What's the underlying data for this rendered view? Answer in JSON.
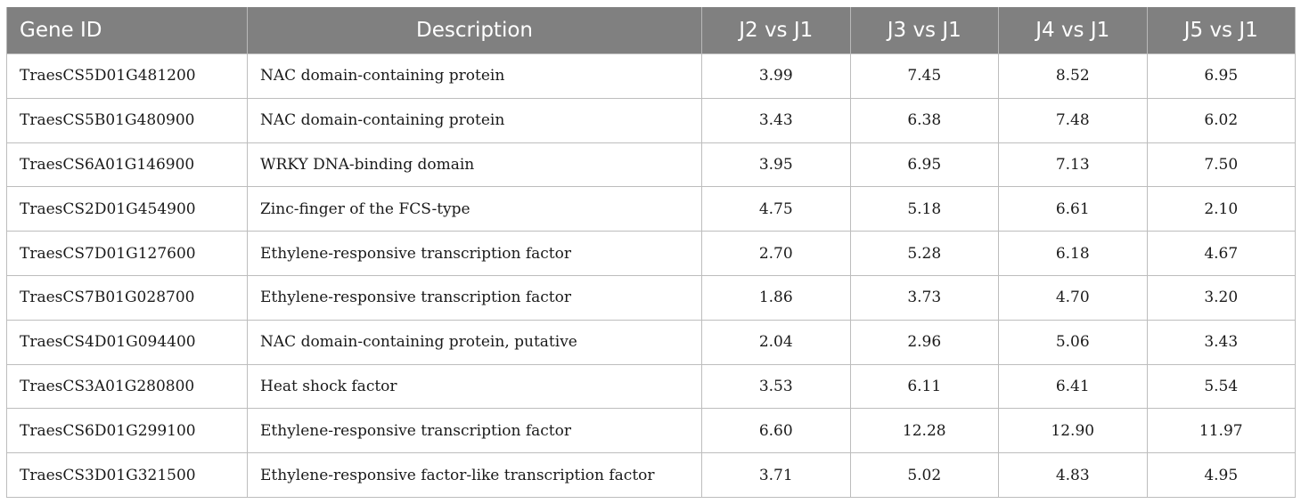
{
  "table": {
    "headers": [
      "Gene ID",
      "Description",
      "J2 vs J1",
      "J3 vs J1",
      "J4 vs J1",
      "J5 vs J1"
    ],
    "rows": [
      {
        "id": "TraesCS5D01G481200",
        "desc": "NAC domain-containing protein",
        "v": [
          "3.99",
          "7.45",
          "8.52",
          "6.95"
        ]
      },
      {
        "id": "TraesCS5B01G480900",
        "desc": "NAC domain-containing protein",
        "v": [
          "3.43",
          "6.38",
          "7.48",
          "6.02"
        ]
      },
      {
        "id": "TraesCS6A01G146900",
        "desc": "WRKY DNA-binding domain",
        "v": [
          "3.95",
          "6.95",
          "7.13",
          "7.50"
        ]
      },
      {
        "id": "TraesCS2D01G454900",
        "desc": "Zinc-finger of the FCS-type",
        "v": [
          "4.75",
          "5.18",
          "6.61",
          "2.10"
        ]
      },
      {
        "id": "TraesCS7D01G127600",
        "desc": "Ethylene-responsive transcription factor",
        "v": [
          "2.70",
          "5.28",
          "6.18",
          "4.67"
        ]
      },
      {
        "id": "TraesCS7B01G028700",
        "desc": "Ethylene-responsive transcription factor",
        "v": [
          "1.86",
          "3.73",
          "4.70",
          "3.20"
        ]
      },
      {
        "id": "TraesCS4D01G094400",
        "desc": "NAC domain-containing protein, putative",
        "v": [
          "2.04",
          "2.96",
          "5.06",
          "3.43"
        ]
      },
      {
        "id": "TraesCS3A01G280800",
        "desc": "Heat shock factor",
        "v": [
          "3.53",
          "6.11",
          "6.41",
          "5.54"
        ]
      },
      {
        "id": "TraesCS6D01G299100",
        "desc": "Ethylene-responsive transcription factor",
        "v": [
          "6.60",
          "12.28",
          "12.90",
          "11.97"
        ]
      },
      {
        "id": "TraesCS3D01G321500",
        "desc": "Ethylene-responsive factor-like transcription factor",
        "v": [
          "3.71",
          "5.02",
          "4.83",
          "4.95"
        ]
      }
    ]
  },
  "colors": {
    "header_bg": "#808080",
    "header_text": "#ffffff",
    "grid": "#bdbdbd"
  }
}
